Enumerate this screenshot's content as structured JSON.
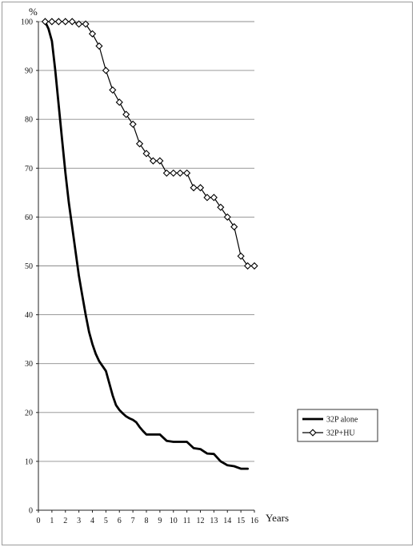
{
  "chart_data": {
    "type": "line",
    "y_unit_label": "%",
    "x_unit_label": "Years",
    "xlim": [
      0,
      16
    ],
    "ylim": [
      0,
      100
    ],
    "x_ticks": [
      0,
      1,
      2,
      3,
      4,
      5,
      6,
      7,
      8,
      9,
      10,
      11,
      12,
      13,
      14,
      15,
      16
    ],
    "y_ticks": [
      0,
      10,
      20,
      30,
      40,
      50,
      60,
      70,
      80,
      90,
      100
    ],
    "grid": "horizontal",
    "legend_position": "right",
    "series": [
      {
        "name": "32P alone",
        "style": "thick-line",
        "color": "#000000",
        "x": [
          0.5,
          0.75,
          1,
          1.25,
          1.5,
          1.75,
          2,
          2.25,
          2.5,
          2.75,
          3,
          3.25,
          3.5,
          3.75,
          4,
          4.25,
          4.5,
          4.75,
          5,
          5.25,
          5.5,
          5.75,
          6,
          6.25,
          6.5,
          6.75,
          7,
          7.25,
          7.5,
          7.75,
          8,
          8.5,
          9,
          9.5,
          10,
          10.5,
          11,
          11.5,
          12,
          12.5,
          13,
          13.5,
          14,
          14.5,
          15,
          15.5
        ],
        "values": [
          100,
          98.5,
          96,
          90,
          83,
          76,
          69,
          63,
          58,
          53,
          48,
          44,
          40,
          36.5,
          34,
          32,
          30.5,
          29.5,
          28.5,
          26,
          23.5,
          21.5,
          20.5,
          19.8,
          19.2,
          18.8,
          18.5,
          18,
          17,
          16.2,
          15.5,
          15.5,
          15.5,
          14.2,
          14,
          14,
          14,
          12.7,
          12.5,
          11.6,
          11.5,
          10,
          9.2,
          9,
          8.5,
          8.5
        ]
      },
      {
        "name": "32P+HU",
        "style": "line-diamond",
        "color": "#000000",
        "x": [
          0.5,
          1,
          1.5,
          2,
          2.5,
          3,
          3.5,
          4,
          4.5,
          5,
          5.5,
          6,
          6.5,
          7,
          7.5,
          8,
          8.5,
          9,
          9.5,
          10,
          10.5,
          11,
          11.5,
          12,
          12.5,
          13,
          13.5,
          14,
          14.5,
          15,
          15.5,
          16
        ],
        "values": [
          100,
          100,
          100,
          100,
          100,
          99.5,
          99.5,
          97.5,
          95,
          90,
          86,
          83.5,
          81,
          79,
          75,
          73,
          71.5,
          71.5,
          69,
          69,
          69,
          69,
          66,
          66,
          64,
          64,
          62,
          60,
          58,
          52,
          50,
          50
        ]
      }
    ]
  }
}
